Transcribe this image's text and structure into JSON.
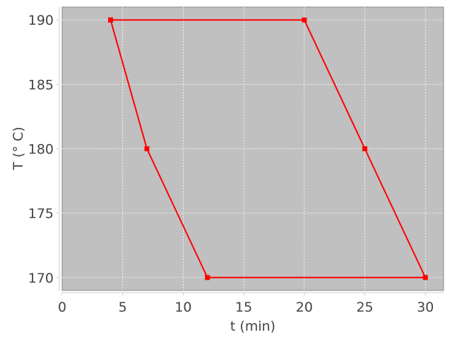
{
  "chart_data": {
    "type": "line",
    "title": "",
    "xlabel": "t (min)",
    "ylabel": "T (° C)",
    "xlim": [
      0,
      31.5
    ],
    "ylim": [
      169,
      191
    ],
    "xticks": [
      0,
      5,
      10,
      15,
      20,
      25,
      30
    ],
    "yticks": [
      170,
      175,
      180,
      185,
      190
    ],
    "grid": true,
    "legend": "none",
    "background_color": "#c0c0c0",
    "series": [
      {
        "color": "#ff0000",
        "marker": "square",
        "x": [
          4,
          20,
          25,
          30,
          12,
          7,
          4
        ],
        "y": [
          190,
          190,
          180,
          170,
          170,
          180,
          190
        ]
      }
    ]
  }
}
